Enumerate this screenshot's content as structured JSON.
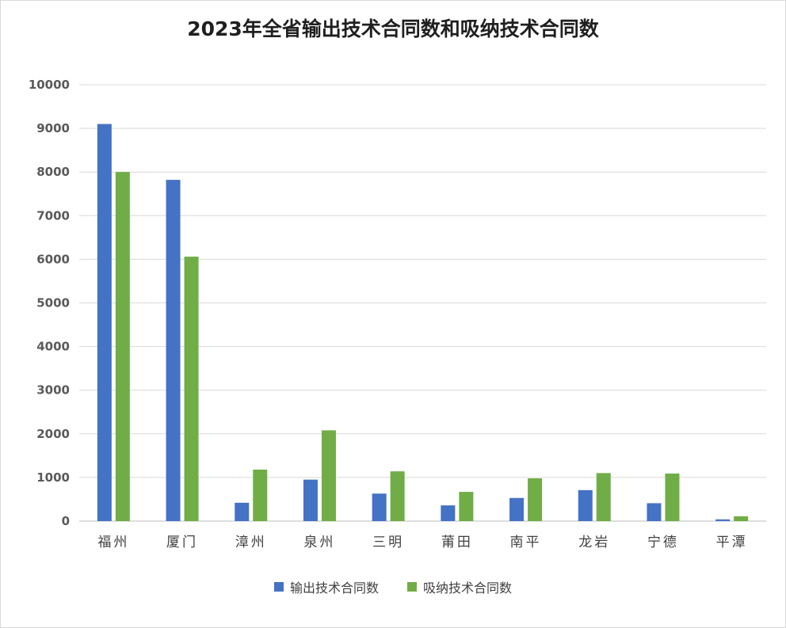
{
  "chart_data": {
    "type": "bar",
    "title": "2023年全省输出技术合同数和吸纳技术合同数",
    "categories": [
      "福州",
      "厦门",
      "漳州",
      "泉州",
      "三明",
      "莆田",
      "南平",
      "龙岩",
      "宁德",
      "平潭"
    ],
    "series": [
      {
        "name": "输出技术合同数",
        "color": "#4472c4",
        "values": [
          9100,
          7820,
          420,
          950,
          630,
          360,
          530,
          710,
          410,
          40
        ]
      },
      {
        "name": "吸纳技术合同数",
        "color": "#70ad47",
        "values": [
          8000,
          6060,
          1180,
          2080,
          1140,
          670,
          980,
          1100,
          1090,
          110
        ]
      }
    ],
    "ylim": [
      0,
      10000
    ],
    "yticks": [
      "0",
      "1000",
      "2000",
      "3000",
      "4000",
      "5000",
      "6000",
      "7000",
      "8000",
      "9000",
      "10000"
    ],
    "grid": true,
    "legend_position": "bottom",
    "xlabel": "",
    "ylabel": ""
  }
}
